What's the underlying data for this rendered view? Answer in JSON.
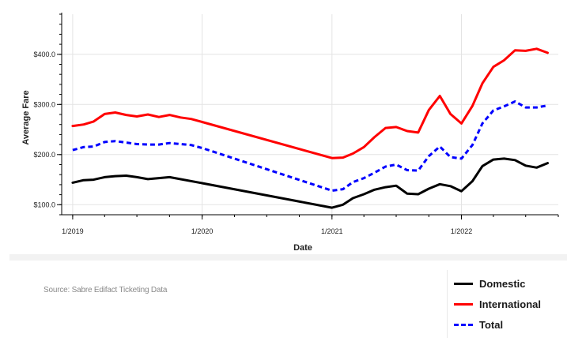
{
  "chart_data": {
    "type": "line",
    "xlabel": "Date",
    "ylabel": "Average Fare",
    "ylim": [
      80,
      480
    ],
    "xlim": [
      "2018-12-01",
      "2022-10-01"
    ],
    "x_ticks": [
      {
        "date": "2019-01-01",
        "label": "1/2019"
      },
      {
        "date": "2020-01-01",
        "label": "1/2020"
      },
      {
        "date": "2021-01-01",
        "label": "1/2021"
      },
      {
        "date": "2022-01-01",
        "label": "1/2022"
      }
    ],
    "y_ticks": [
      {
        "value": 100,
        "label": "$100.0"
      },
      {
        "value": 200,
        "label": "$200.0"
      },
      {
        "value": 300,
        "label": "$300.0"
      },
      {
        "value": 400,
        "label": "$400.0"
      }
    ],
    "grid": true,
    "legend_position": "bottom-right",
    "series": [
      {
        "name": "Domestic",
        "color": "#000000",
        "dash": "solid",
        "points": [
          [
            "2019-01-01",
            144
          ],
          [
            "2019-02-01",
            149
          ],
          [
            "2019-03-01",
            150
          ],
          [
            "2019-04-01",
            155
          ],
          [
            "2019-05-01",
            157
          ],
          [
            "2019-06-01",
            158
          ],
          [
            "2019-07-01",
            155
          ],
          [
            "2019-08-01",
            151
          ],
          [
            "2019-09-01",
            153
          ],
          [
            "2019-10-01",
            155
          ],
          [
            "2020-01-01",
            143
          ],
          [
            "2021-01-01",
            94
          ],
          [
            "2021-02-01",
            100
          ],
          [
            "2021-03-01",
            113
          ],
          [
            "2021-04-01",
            121
          ],
          [
            "2021-05-01",
            130
          ],
          [
            "2021-06-01",
            135
          ],
          [
            "2021-07-01",
            138
          ],
          [
            "2021-08-01",
            122
          ],
          [
            "2021-09-01",
            121
          ],
          [
            "2021-10-01",
            132
          ],
          [
            "2021-11-01",
            141
          ],
          [
            "2021-12-01",
            137
          ],
          [
            "2022-01-01",
            127
          ],
          [
            "2022-02-01",
            147
          ],
          [
            "2022-03-01",
            177
          ],
          [
            "2022-04-01",
            190
          ],
          [
            "2022-05-01",
            192
          ],
          [
            "2022-06-01",
            189
          ],
          [
            "2022-07-01",
            178
          ],
          [
            "2022-08-01",
            174
          ],
          [
            "2022-09-01",
            183
          ]
        ]
      },
      {
        "name": "International",
        "color": "#ff0000",
        "dash": "solid",
        "points": [
          [
            "2019-01-01",
            257
          ],
          [
            "2019-02-01",
            260
          ],
          [
            "2019-03-01",
            266
          ],
          [
            "2019-04-01",
            281
          ],
          [
            "2019-05-01",
            284
          ],
          [
            "2019-06-01",
            279
          ],
          [
            "2019-07-01",
            276
          ],
          [
            "2019-08-01",
            280
          ],
          [
            "2019-09-01",
            275
          ],
          [
            "2019-10-01",
            279
          ],
          [
            "2019-11-01",
            274
          ],
          [
            "2019-12-01",
            271
          ],
          [
            "2020-01-01",
            265
          ],
          [
            "2021-01-01",
            193
          ],
          [
            "2021-02-01",
            194
          ],
          [
            "2021-03-01",
            202
          ],
          [
            "2021-04-01",
            215
          ],
          [
            "2021-05-01",
            235
          ],
          [
            "2021-06-01",
            253
          ],
          [
            "2021-07-01",
            255
          ],
          [
            "2021-08-01",
            247
          ],
          [
            "2021-09-01",
            244
          ],
          [
            "2021-10-01",
            289
          ],
          [
            "2021-11-01",
            317
          ],
          [
            "2021-12-01",
            281
          ],
          [
            "2022-01-01",
            262
          ],
          [
            "2022-02-01",
            297
          ],
          [
            "2022-03-01",
            342
          ],
          [
            "2022-04-01",
            375
          ],
          [
            "2022-05-01",
            388
          ],
          [
            "2022-06-01",
            408
          ],
          [
            "2022-07-01",
            407
          ],
          [
            "2022-08-01",
            411
          ],
          [
            "2022-09-01",
            403
          ]
        ]
      },
      {
        "name": "Total",
        "color": "#0000ff",
        "dash": "dashed",
        "points": [
          [
            "2019-01-01",
            209
          ],
          [
            "2019-02-01",
            215
          ],
          [
            "2019-03-01",
            216
          ],
          [
            "2019-04-01",
            225
          ],
          [
            "2019-05-01",
            227
          ],
          [
            "2019-06-01",
            224
          ],
          [
            "2019-07-01",
            221
          ],
          [
            "2019-08-01",
            220
          ],
          [
            "2019-09-01",
            220
          ],
          [
            "2019-10-01",
            223
          ],
          [
            "2019-11-01",
            221
          ],
          [
            "2019-12-01",
            219
          ],
          [
            "2020-01-01",
            213
          ],
          [
            "2021-01-01",
            128
          ],
          [
            "2021-02-01",
            131
          ],
          [
            "2021-03-01",
            145
          ],
          [
            "2021-04-01",
            153
          ],
          [
            "2021-05-01",
            164
          ],
          [
            "2021-06-01",
            176
          ],
          [
            "2021-07-01",
            180
          ],
          [
            "2021-08-01",
            169
          ],
          [
            "2021-09-01",
            168
          ],
          [
            "2021-10-01",
            197
          ],
          [
            "2021-11-01",
            216
          ],
          [
            "2021-12-01",
            195
          ],
          [
            "2022-01-01",
            192
          ],
          [
            "2022-02-01",
            219
          ],
          [
            "2022-03-01",
            262
          ],
          [
            "2022-04-01",
            288
          ],
          [
            "2022-05-01",
            296
          ],
          [
            "2022-06-01",
            306
          ],
          [
            "2022-07-01",
            294
          ],
          [
            "2022-08-01",
            294
          ],
          [
            "2022-09-01",
            298
          ]
        ]
      }
    ]
  },
  "source": "Source: Sabre Edifact Ticketing Data",
  "legend": [
    {
      "name": "Domestic",
      "color": "#000000",
      "dash": "solid"
    },
    {
      "name": "International",
      "color": "#ff0000",
      "dash": "solid"
    },
    {
      "name": "Total",
      "color": "#0000ff",
      "dash": "dashed"
    }
  ]
}
